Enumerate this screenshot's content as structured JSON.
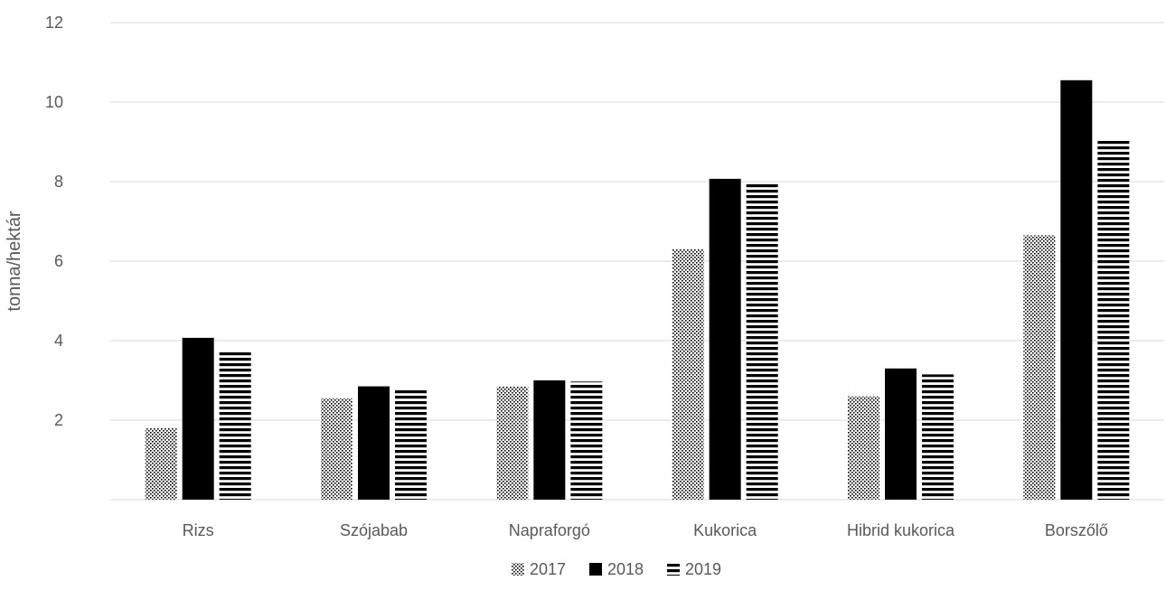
{
  "chart_data": {
    "type": "bar",
    "title": "",
    "xlabel": "",
    "ylabel": "tonna/hektár",
    "ylim": [
      0,
      12
    ],
    "yticks": [
      2,
      4,
      6,
      8,
      10,
      12
    ],
    "grid": true,
    "legend_position": "bottom",
    "categories": [
      "Rizs",
      "Szójabab",
      "Napraforgó",
      "Kukorica",
      "Hibrid kukorica",
      "Borszőlő"
    ],
    "series": [
      {
        "name": "2017",
        "pattern": "dots",
        "values": [
          1.8,
          2.55,
          2.85,
          6.3,
          2.6,
          6.65
        ]
      },
      {
        "name": "2018",
        "pattern": "solid",
        "values": [
          4.07,
          2.85,
          3.0,
          8.07,
          3.3,
          10.55
        ]
      },
      {
        "name": "2019",
        "pattern": "horizontal-stripes",
        "values": [
          3.73,
          2.77,
          2.97,
          7.95,
          3.15,
          9.03
        ]
      }
    ],
    "colors": {
      "bar": "#000000",
      "grid": "#d9d9d9",
      "text": "#595959"
    }
  }
}
